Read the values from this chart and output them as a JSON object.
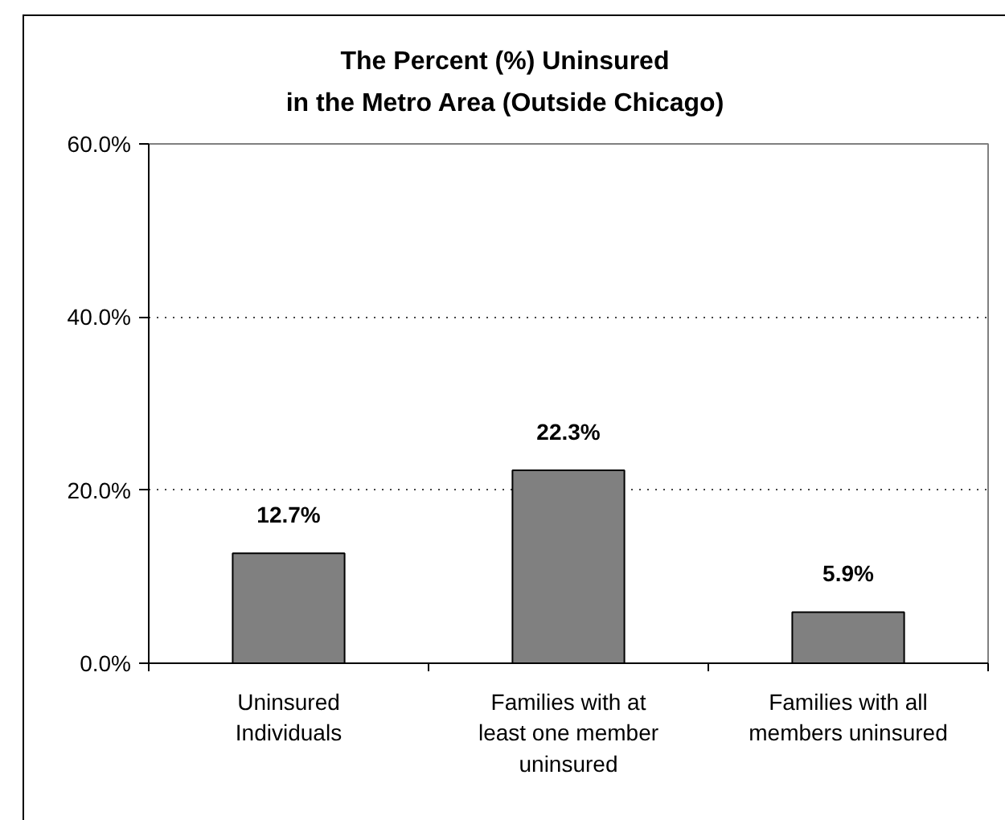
{
  "chart_data": {
    "type": "bar",
    "title": "The Percent (%) Uninsured\nin the Metro Area (Outside Chicago)",
    "categories": [
      "Uninsured\nIndividuals",
      "Families with at\nleast one member\nuninsured",
      "Families with all\nmembers uninsured"
    ],
    "values": [
      12.7,
      22.3,
      5.9
    ],
    "color": "#808080",
    "value_labels": [
      "12.7%",
      "22.3%",
      "5.9%"
    ],
    "ylim": [
      0,
      60
    ],
    "yticks": [
      {
        "value": 0,
        "label": "0.0%"
      },
      {
        "value": 20,
        "label": "20.0%"
      },
      {
        "value": 40,
        "label": "40.0%"
      },
      {
        "value": 60,
        "label": "60.0%"
      }
    ],
    "grid": "y"
  }
}
